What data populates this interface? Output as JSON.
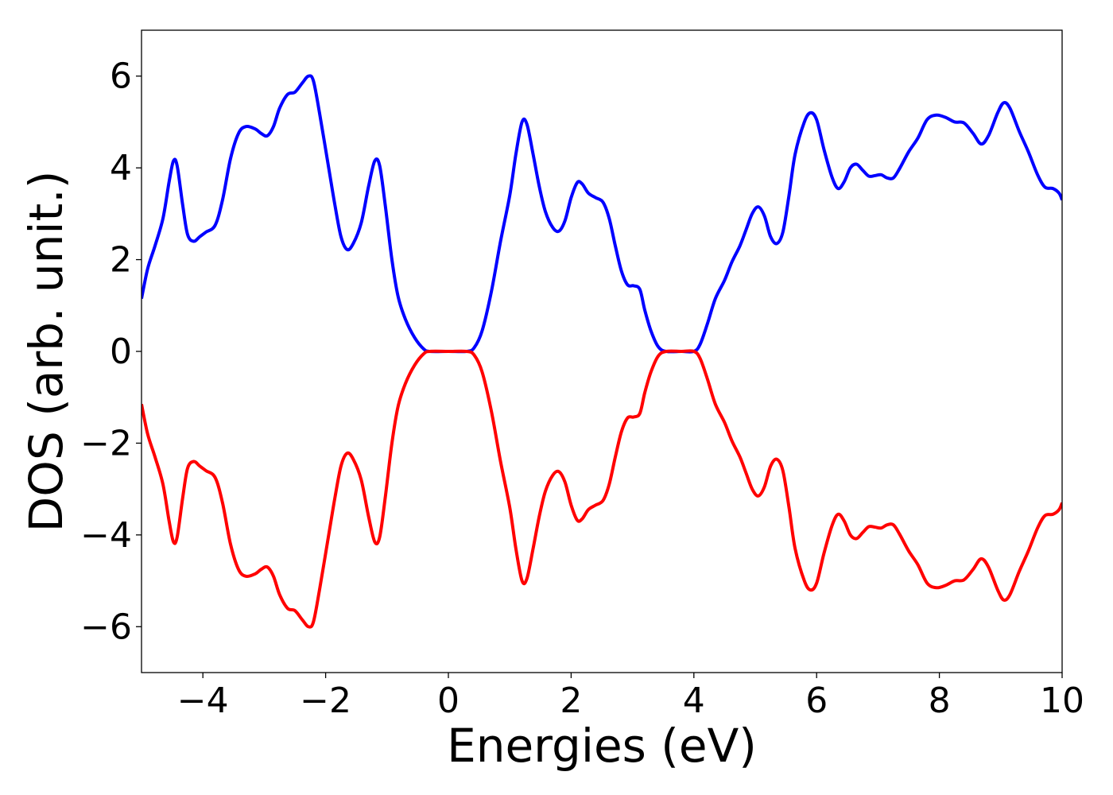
{
  "chart_data": {
    "type": "line",
    "title": "",
    "xlabel": "Energies (eV)",
    "ylabel": "DOS (arb. unit.)",
    "xlim": [
      -5,
      10
    ],
    "ylim": [
      -7,
      7
    ],
    "xticks": [
      -4,
      -2,
      0,
      2,
      4,
      6,
      8,
      10
    ],
    "yticks": [
      -6,
      -4,
      -2,
      0,
      2,
      4,
      6
    ],
    "xtick_labels": [
      "−4",
      "−2",
      "0",
      "2",
      "4",
      "6",
      "8",
      "10"
    ],
    "ytick_labels": [
      "−6",
      "−4",
      "−2",
      "0",
      "2",
      "4",
      "6"
    ],
    "grid": false,
    "legend": "none",
    "series": [
      {
        "color": "#0000ff",
        "points": [
          [
            -5.0,
            1.15
          ],
          [
            -4.9,
            1.8
          ],
          [
            -4.78,
            2.3
          ],
          [
            -4.65,
            2.9
          ],
          [
            -4.55,
            3.7
          ],
          [
            -4.48,
            4.15
          ],
          [
            -4.42,
            4.05
          ],
          [
            -4.33,
            3.2
          ],
          [
            -4.25,
            2.55
          ],
          [
            -4.15,
            2.4
          ],
          [
            -4.05,
            2.5
          ],
          [
            -3.95,
            2.6
          ],
          [
            -3.8,
            2.75
          ],
          [
            -3.68,
            3.3
          ],
          [
            -3.55,
            4.2
          ],
          [
            -3.42,
            4.75
          ],
          [
            -3.3,
            4.9
          ],
          [
            -3.15,
            4.85
          ],
          [
            -3.05,
            4.75
          ],
          [
            -2.95,
            4.7
          ],
          [
            -2.85,
            4.9
          ],
          [
            -2.75,
            5.3
          ],
          [
            -2.62,
            5.6
          ],
          [
            -2.5,
            5.65
          ],
          [
            -2.38,
            5.85
          ],
          [
            -2.28,
            6.0
          ],
          [
            -2.2,
            5.9
          ],
          [
            -2.1,
            5.2
          ],
          [
            -1.95,
            4.0
          ],
          [
            -1.85,
            3.2
          ],
          [
            -1.75,
            2.5
          ],
          [
            -1.65,
            2.22
          ],
          [
            -1.55,
            2.35
          ],
          [
            -1.42,
            2.8
          ],
          [
            -1.3,
            3.6
          ],
          [
            -1.2,
            4.15
          ],
          [
            -1.12,
            4.05
          ],
          [
            -1.03,
            3.2
          ],
          [
            -0.92,
            2.0
          ],
          [
            -0.82,
            1.2
          ],
          [
            -0.7,
            0.7
          ],
          [
            -0.55,
            0.3
          ],
          [
            -0.4,
            0.05
          ],
          [
            -0.3,
            0.0
          ],
          [
            0.0,
            0.0
          ],
          [
            0.3,
            0.0
          ],
          [
            0.42,
            0.08
          ],
          [
            0.55,
            0.45
          ],
          [
            0.7,
            1.3
          ],
          [
            0.85,
            2.4
          ],
          [
            1.0,
            3.4
          ],
          [
            1.1,
            4.3
          ],
          [
            1.2,
            5.0
          ],
          [
            1.28,
            4.95
          ],
          [
            1.38,
            4.3
          ],
          [
            1.48,
            3.6
          ],
          [
            1.58,
            3.05
          ],
          [
            1.7,
            2.7
          ],
          [
            1.8,
            2.62
          ],
          [
            1.9,
            2.85
          ],
          [
            2.0,
            3.35
          ],
          [
            2.1,
            3.68
          ],
          [
            2.18,
            3.65
          ],
          [
            2.28,
            3.45
          ],
          [
            2.4,
            3.35
          ],
          [
            2.52,
            3.25
          ],
          [
            2.62,
            2.9
          ],
          [
            2.72,
            2.3
          ],
          [
            2.82,
            1.75
          ],
          [
            2.92,
            1.45
          ],
          [
            3.02,
            1.43
          ],
          [
            3.12,
            1.35
          ],
          [
            3.2,
            0.9
          ],
          [
            3.3,
            0.45
          ],
          [
            3.42,
            0.1
          ],
          [
            3.55,
            0.0
          ],
          [
            3.8,
            0.0
          ],
          [
            4.0,
            0.0
          ],
          [
            4.1,
            0.15
          ],
          [
            4.22,
            0.6
          ],
          [
            4.35,
            1.15
          ],
          [
            4.5,
            1.55
          ],
          [
            4.62,
            1.95
          ],
          [
            4.75,
            2.3
          ],
          [
            4.85,
            2.65
          ],
          [
            4.95,
            3.0
          ],
          [
            5.05,
            3.15
          ],
          [
            5.15,
            2.95
          ],
          [
            5.25,
            2.5
          ],
          [
            5.35,
            2.35
          ],
          [
            5.45,
            2.6
          ],
          [
            5.55,
            3.4
          ],
          [
            5.65,
            4.3
          ],
          [
            5.8,
            5.0
          ],
          [
            5.9,
            5.2
          ],
          [
            6.0,
            5.05
          ],
          [
            6.12,
            4.4
          ],
          [
            6.25,
            3.8
          ],
          [
            6.35,
            3.55
          ],
          [
            6.45,
            3.7
          ],
          [
            6.55,
            4.0
          ],
          [
            6.65,
            4.08
          ],
          [
            6.75,
            3.95
          ],
          [
            6.85,
            3.82
          ],
          [
            6.95,
            3.83
          ],
          [
            7.05,
            3.85
          ],
          [
            7.15,
            3.78
          ],
          [
            7.25,
            3.78
          ],
          [
            7.35,
            3.98
          ],
          [
            7.5,
            4.35
          ],
          [
            7.65,
            4.65
          ],
          [
            7.8,
            5.05
          ],
          [
            7.95,
            5.15
          ],
          [
            8.1,
            5.1
          ],
          [
            8.25,
            5.0
          ],
          [
            8.4,
            4.98
          ],
          [
            8.55,
            4.75
          ],
          [
            8.68,
            4.52
          ],
          [
            8.8,
            4.7
          ],
          [
            8.95,
            5.2
          ],
          [
            9.05,
            5.42
          ],
          [
            9.15,
            5.3
          ],
          [
            9.3,
            4.8
          ],
          [
            9.45,
            4.35
          ],
          [
            9.6,
            3.85
          ],
          [
            9.72,
            3.58
          ],
          [
            9.85,
            3.55
          ],
          [
            9.95,
            3.45
          ],
          [
            10.0,
            3.3
          ]
        ]
      },
      {
        "color": "#ff0000",
        "points": [
          [
            -5.0,
            -1.15
          ],
          [
            -4.9,
            -1.8
          ],
          [
            -4.78,
            -2.3
          ],
          [
            -4.65,
            -2.9
          ],
          [
            -4.55,
            -3.7
          ],
          [
            -4.48,
            -4.15
          ],
          [
            -4.42,
            -4.05
          ],
          [
            -4.33,
            -3.2
          ],
          [
            -4.25,
            -2.55
          ],
          [
            -4.15,
            -2.4
          ],
          [
            -4.05,
            -2.5
          ],
          [
            -3.95,
            -2.6
          ],
          [
            -3.8,
            -2.75
          ],
          [
            -3.68,
            -3.3
          ],
          [
            -3.55,
            -4.2
          ],
          [
            -3.42,
            -4.75
          ],
          [
            -3.3,
            -4.9
          ],
          [
            -3.15,
            -4.85
          ],
          [
            -3.05,
            -4.75
          ],
          [
            -2.95,
            -4.7
          ],
          [
            -2.85,
            -4.9
          ],
          [
            -2.75,
            -5.3
          ],
          [
            -2.62,
            -5.6
          ],
          [
            -2.5,
            -5.65
          ],
          [
            -2.38,
            -5.85
          ],
          [
            -2.28,
            -6.0
          ],
          [
            -2.2,
            -5.9
          ],
          [
            -2.1,
            -5.2
          ],
          [
            -1.95,
            -4.0
          ],
          [
            -1.85,
            -3.2
          ],
          [
            -1.75,
            -2.5
          ],
          [
            -1.65,
            -2.22
          ],
          [
            -1.55,
            -2.35
          ],
          [
            -1.42,
            -2.8
          ],
          [
            -1.3,
            -3.6
          ],
          [
            -1.2,
            -4.15
          ],
          [
            -1.12,
            -4.05
          ],
          [
            -1.03,
            -3.2
          ],
          [
            -0.92,
            -2.0
          ],
          [
            -0.82,
            -1.2
          ],
          [
            -0.7,
            -0.7
          ],
          [
            -0.55,
            -0.3
          ],
          [
            -0.4,
            -0.05
          ],
          [
            -0.3,
            0.0
          ],
          [
            0.0,
            0.0
          ],
          [
            0.3,
            0.0
          ],
          [
            0.42,
            -0.08
          ],
          [
            0.55,
            -0.45
          ],
          [
            0.7,
            -1.3
          ],
          [
            0.85,
            -2.4
          ],
          [
            1.0,
            -3.4
          ],
          [
            1.1,
            -4.3
          ],
          [
            1.2,
            -5.0
          ],
          [
            1.28,
            -4.95
          ],
          [
            1.38,
            -4.3
          ],
          [
            1.48,
            -3.6
          ],
          [
            1.58,
            -3.05
          ],
          [
            1.7,
            -2.7
          ],
          [
            1.8,
            -2.62
          ],
          [
            1.9,
            -2.85
          ],
          [
            2.0,
            -3.35
          ],
          [
            2.1,
            -3.68
          ],
          [
            2.18,
            -3.65
          ],
          [
            2.28,
            -3.45
          ],
          [
            2.4,
            -3.35
          ],
          [
            2.52,
            -3.25
          ],
          [
            2.62,
            -2.9
          ],
          [
            2.72,
            -2.3
          ],
          [
            2.82,
            -1.75
          ],
          [
            2.92,
            -1.45
          ],
          [
            3.02,
            -1.43
          ],
          [
            3.12,
            -1.35
          ],
          [
            3.2,
            -0.9
          ],
          [
            3.3,
            -0.45
          ],
          [
            3.42,
            -0.1
          ],
          [
            3.55,
            0.0
          ],
          [
            3.8,
            0.0
          ],
          [
            4.0,
            0.0
          ],
          [
            4.1,
            -0.15
          ],
          [
            4.22,
            -0.6
          ],
          [
            4.35,
            -1.15
          ],
          [
            4.5,
            -1.55
          ],
          [
            4.62,
            -1.95
          ],
          [
            4.75,
            -2.3
          ],
          [
            4.85,
            -2.65
          ],
          [
            4.95,
            -3.0
          ],
          [
            5.05,
            -3.15
          ],
          [
            5.15,
            -2.95
          ],
          [
            5.25,
            -2.5
          ],
          [
            5.35,
            -2.35
          ],
          [
            5.45,
            -2.6
          ],
          [
            5.55,
            -3.4
          ],
          [
            5.65,
            -4.3
          ],
          [
            5.8,
            -5.0
          ],
          [
            5.9,
            -5.2
          ],
          [
            6.0,
            -5.05
          ],
          [
            6.12,
            -4.4
          ],
          [
            6.25,
            -3.8
          ],
          [
            6.35,
            -3.55
          ],
          [
            6.45,
            -3.7
          ],
          [
            6.55,
            -4.0
          ],
          [
            6.65,
            -4.08
          ],
          [
            6.75,
            -3.95
          ],
          [
            6.85,
            -3.82
          ],
          [
            6.95,
            -3.83
          ],
          [
            7.05,
            -3.85
          ],
          [
            7.15,
            -3.78
          ],
          [
            7.25,
            -3.78
          ],
          [
            7.35,
            -3.98
          ],
          [
            7.5,
            -4.35
          ],
          [
            7.65,
            -4.65
          ],
          [
            7.8,
            -5.05
          ],
          [
            7.95,
            -5.15
          ],
          [
            8.1,
            -5.1
          ],
          [
            8.25,
            -5.0
          ],
          [
            8.4,
            -4.98
          ],
          [
            8.55,
            -4.75
          ],
          [
            8.68,
            -4.52
          ],
          [
            8.8,
            -4.7
          ],
          [
            8.95,
            -5.2
          ],
          [
            9.05,
            -5.42
          ],
          [
            9.15,
            -5.3
          ],
          [
            9.3,
            -4.8
          ],
          [
            9.45,
            -4.35
          ],
          [
            9.6,
            -3.85
          ],
          [
            9.72,
            -3.58
          ],
          [
            9.85,
            -3.55
          ],
          [
            9.95,
            -3.45
          ],
          [
            10.0,
            -3.3
          ]
        ]
      }
    ]
  }
}
